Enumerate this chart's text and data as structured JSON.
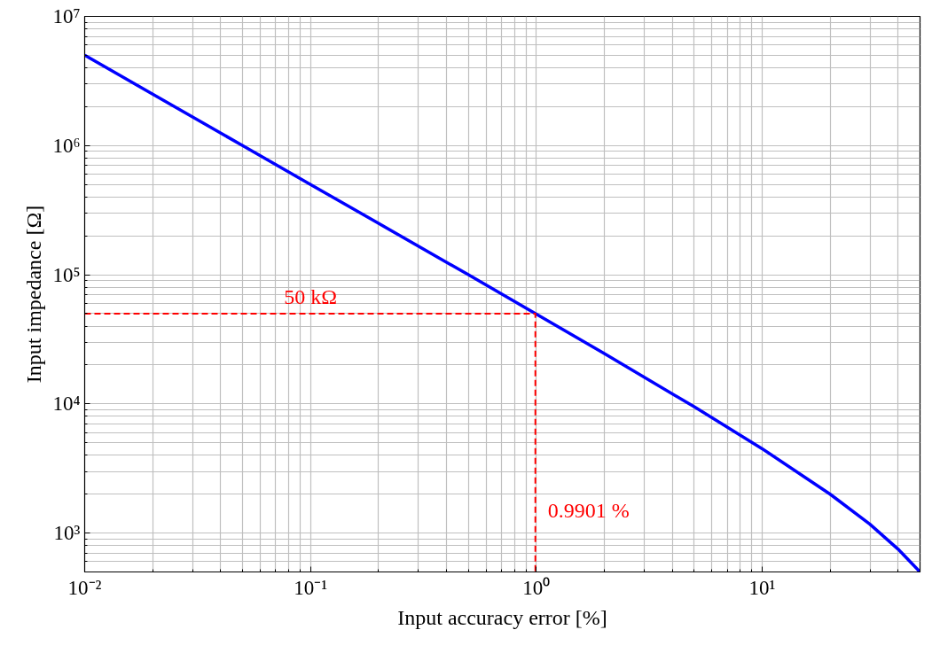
{
  "chart_data": {
    "type": "line",
    "xlabel": "Input accuracy error [%]",
    "ylabel": "Input impedance [Ω]",
    "log": "xy",
    "grid": true,
    "marker": "none",
    "xlim": [
      0.01,
      50
    ],
    "ylim": [
      500,
      10000000
    ],
    "xticks": [
      {
        "value": 0.01,
        "label": "10⁻²"
      },
      {
        "value": 0.1,
        "label": "10⁻¹"
      },
      {
        "value": 1,
        "label": "10⁰"
      },
      {
        "value": 10,
        "label": "10¹"
      }
    ],
    "yticks": [
      {
        "value": 1000,
        "label": "10³"
      },
      {
        "value": 10000,
        "label": "10⁴"
      },
      {
        "value": 100000,
        "label": "10⁵"
      },
      {
        "value": 1000000,
        "label": "10⁶"
      },
      {
        "value": 10000000,
        "label": "10⁷"
      }
    ],
    "series": [
      {
        "color": "#0000ff",
        "line_style": "solid",
        "x": [
          0.01,
          0.02,
          0.05,
          0.1,
          0.2,
          0.5,
          1,
          2,
          5,
          10,
          20,
          30,
          40,
          50
        ],
        "values": [
          5000000,
          2500000,
          1000000,
          500000,
          250000,
          100000,
          49500,
          24500,
          9500,
          4500,
          2000,
          1170,
          750,
          500
        ]
      },
      {
        "color": "#ff0000",
        "line_style": "dashed",
        "x": [
          0.01,
          0.9901,
          0.9901
        ],
        "values": [
          50000,
          50000,
          500
        ]
      }
    ],
    "annotations": [
      {
        "text": "50 kΩ",
        "x": 0.1,
        "y": 50000
      },
      {
        "text": "0.9901 %",
        "x": 0.9901,
        "y": 1500
      }
    ]
  }
}
